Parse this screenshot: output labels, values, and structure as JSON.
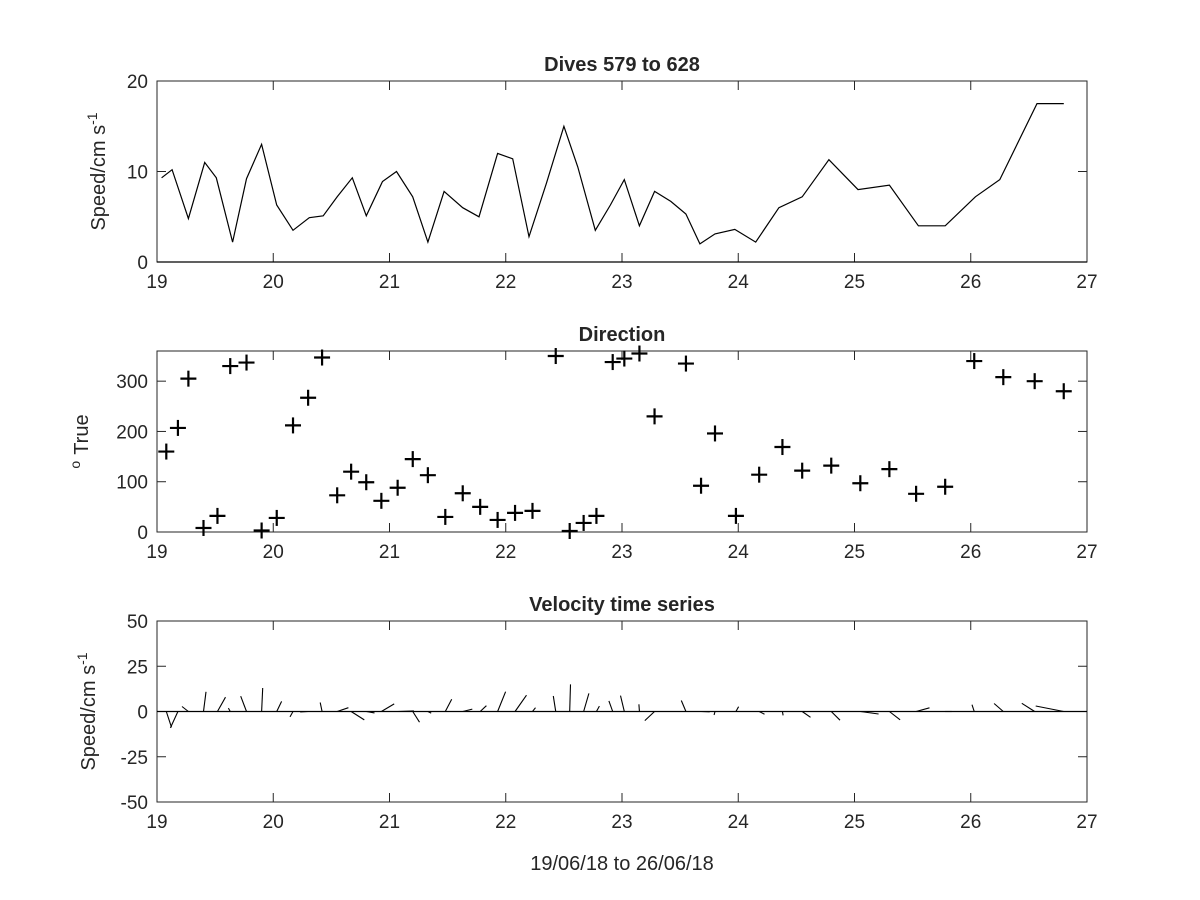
{
  "chart_data": [
    {
      "id": "speed",
      "type": "line",
      "title": "Dives 579 to 628",
      "xlabel": "",
      "ylabel": "Speed/cm s",
      "ylabel_sup": "-1",
      "xlim": [
        19,
        27
      ],
      "ylim": [
        0,
        20
      ],
      "xticks": [
        19,
        20,
        21,
        22,
        23,
        24,
        25,
        26,
        27
      ],
      "yticks": [
        0,
        10,
        20
      ],
      "x": [
        19.04,
        19.13,
        19.27,
        19.41,
        19.51,
        19.65,
        19.77,
        19.9,
        20.03,
        20.17,
        20.31,
        20.43,
        20.55,
        20.68,
        20.8,
        20.94,
        21.06,
        21.2,
        21.33,
        21.47,
        21.63,
        21.77,
        21.93,
        22.06,
        22.2,
        22.35,
        22.5,
        22.62,
        22.77,
        22.9,
        23.02,
        23.15,
        23.28,
        23.42,
        23.55,
        23.67,
        23.8,
        23.97,
        24.15,
        24.35,
        24.55,
        24.78,
        25.03,
        25.3,
        25.55,
        25.78,
        26.04,
        26.25,
        26.57,
        26.8
      ],
      "values": [
        9.3,
        10.2,
        4.8,
        11.0,
        9.3,
        2.2,
        9.2,
        13.0,
        6.3,
        3.5,
        4.9,
        5.1,
        7.2,
        9.3,
        5.1,
        8.9,
        10.0,
        7.2,
        2.2,
        7.8,
        6.0,
        5.0,
        12.0,
        11.4,
        2.8,
        8.7,
        15.0,
        10.5,
        3.5,
        6.3,
        9.1,
        4.0,
        7.8,
        6.7,
        5.3,
        2.0,
        3.1,
        3.6,
        2.2,
        6.0,
        7.2,
        11.3,
        8.0,
        8.5,
        4.0,
        4.0,
        7.2,
        9.1,
        17.5,
        17.5
      ]
    },
    {
      "id": "direction",
      "type": "scatter",
      "title": "Direction",
      "xlabel": "",
      "ylabel": "True",
      "ylabel_sup": "o",
      "marker": "+",
      "xlim": [
        19,
        27
      ],
      "ylim": [
        0,
        360
      ],
      "xticks": [
        19,
        20,
        21,
        22,
        23,
        24,
        25,
        26,
        27
      ],
      "yticks": [
        0,
        100,
        200,
        300
      ],
      "x": [
        19.08,
        19.18,
        19.27,
        19.4,
        19.52,
        19.63,
        19.77,
        19.9,
        20.03,
        20.17,
        20.3,
        20.42,
        20.55,
        20.67,
        20.8,
        20.93,
        21.07,
        21.2,
        21.33,
        21.48,
        21.63,
        21.78,
        21.93,
        22.08,
        22.23,
        22.43,
        22.55,
        22.67,
        22.78,
        22.92,
        23.02,
        23.15,
        23.28,
        23.55,
        23.68,
        23.8,
        23.98,
        24.18,
        24.38,
        24.55,
        24.8,
        25.05,
        25.3,
        25.53,
        25.78,
        26.03,
        26.28,
        26.55,
        26.8
      ],
      "values": [
        160,
        207,
        305,
        8,
        32,
        330,
        337,
        3,
        28,
        212,
        267,
        347,
        73,
        120,
        99,
        62,
        88,
        145,
        113,
        30,
        77,
        50,
        24,
        38,
        42,
        350,
        2,
        18,
        32,
        338,
        345,
        355,
        230,
        335,
        92,
        196,
        32,
        114,
        169,
        122,
        132,
        97,
        125,
        76,
        90,
        340,
        308,
        300,
        280
      ]
    },
    {
      "id": "velocity",
      "type": "stick",
      "title": "Velocity time series",
      "xlabel": "19/06/18 to 26/06/18",
      "ylabel": "Speed/cm s",
      "ylabel_sup": "-1",
      "xlim": [
        19,
        27
      ],
      "ylim": [
        -50,
        50
      ],
      "xticks": [
        19,
        20,
        21,
        22,
        23,
        24,
        25,
        26,
        27
      ],
      "yticks": [
        -50,
        -25,
        0,
        25,
        50
      ],
      "ytick_labels": [
        "-50",
        "-25",
        "0",
        "25",
        "50"
      ],
      "x": [
        19.08,
        19.18,
        19.27,
        19.4,
        19.52,
        19.63,
        19.77,
        19.9,
        20.03,
        20.17,
        20.3,
        20.42,
        20.55,
        20.67,
        20.8,
        20.93,
        21.07,
        21.2,
        21.33,
        21.48,
        21.63,
        21.78,
        21.93,
        22.08,
        22.23,
        22.43,
        22.55,
        22.67,
        22.78,
        22.92,
        23.02,
        23.15,
        23.28,
        23.55,
        23.68,
        23.8,
        23.98,
        24.18,
        24.38,
        24.55,
        24.8,
        25.05,
        25.3,
        25.53,
        25.78,
        26.03,
        26.28,
        26.55,
        26.8
      ],
      "speed": [
        9.3,
        10.2,
        4.8,
        11.0,
        9.3,
        2.2,
        9.2,
        13.0,
        6.3,
        3.5,
        4.9,
        5.1,
        7.2,
        9.3,
        5.1,
        8.9,
        10.0,
        7.2,
        2.2,
        7.8,
        6.0,
        5.0,
        12.0,
        11.4,
        2.8,
        8.7,
        15.0,
        10.5,
        3.5,
        6.3,
        9.1,
        4.0,
        7.8,
        6.7,
        5.3,
        2.0,
        3.1,
        3.6,
        2.2,
        6.0,
        7.2,
        11.3,
        8.0,
        8.5,
        4.0,
        4.0,
        7.2,
        9.1,
        17.5
      ],
      "direction": [
        160,
        207,
        305,
        8,
        32,
        330,
        337,
        3,
        28,
        212,
        267,
        347,
        73,
        120,
        99,
        62,
        88,
        145,
        113,
        30,
        77,
        50,
        24,
        38,
        42,
        350,
        2,
        18,
        32,
        338,
        345,
        355,
        230,
        335,
        92,
        196,
        32,
        114,
        169,
        122,
        132,
        97,
        125,
        76,
        90,
        340,
        308,
        300,
        280
      ]
    }
  ]
}
